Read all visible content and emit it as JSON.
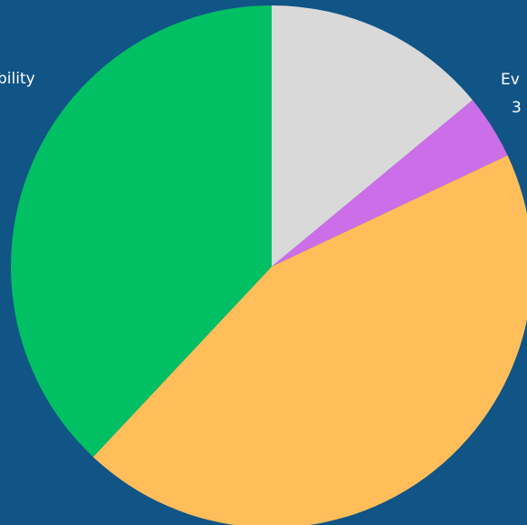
{
  "colors": {
    "background": "#115486",
    "slices": [
      "#d9d9d9",
      "#cc6ee8",
      "#ffbe5a",
      "#01bf63"
    ]
  },
  "chart_data": {
    "type": "pie",
    "slices": [
      {
        "value": 14
      },
      {
        "value": 4
      },
      {
        "value": 44
      },
      {
        "value": 38
      }
    ],
    "visible_labels": {
      "right_top": "Ev",
      "right_bottom": "3",
      "left": "bility"
    }
  }
}
